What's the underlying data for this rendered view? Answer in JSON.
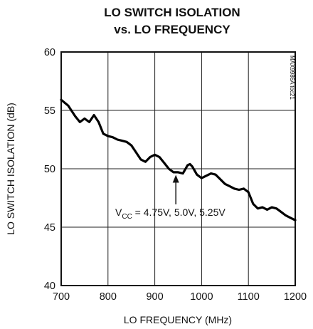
{
  "chart_data": {
    "type": "line",
    "title_lines": [
      "LO SWITCH ISOLATION",
      "vs. LO FREQUENCY"
    ],
    "xlabel": "LO FREQUENCY (MHz)",
    "ylabel": "LO SWITCH ISOLATION (dB)",
    "xlim": [
      700,
      1200
    ],
    "ylim": [
      40,
      60
    ],
    "xticks": [
      700,
      800,
      900,
      1000,
      1100,
      1200
    ],
    "yticks": [
      40,
      45,
      50,
      55,
      60
    ],
    "grid": true,
    "side_label": "MAX9986A toc21",
    "annotation": {
      "prefix": "V",
      "subscript": "CC",
      "text": " = 4.75V, 5.0V, 5.25V",
      "arrow_to": {
        "x": 945,
        "y": 49.6
      }
    },
    "series": [
      {
        "x": [
          700,
          715,
          730,
          740,
          750,
          760,
          770,
          780,
          790,
          800,
          810,
          820,
          830,
          840,
          850,
          860,
          870,
          880,
          890,
          900,
          910,
          920,
          930,
          940,
          950,
          960,
          970,
          975,
          980,
          990,
          1000,
          1010,
          1020,
          1030,
          1040,
          1050,
          1060,
          1070,
          1080,
          1090,
          1100,
          1110,
          1120,
          1130,
          1140,
          1150,
          1160,
          1170,
          1180,
          1190,
          1200
        ],
        "y": [
          55.9,
          55.4,
          54.5,
          54.0,
          54.3,
          54.0,
          54.6,
          54.0,
          53.0,
          52.8,
          52.7,
          52.5,
          52.4,
          52.3,
          52.0,
          51.4,
          50.8,
          50.6,
          51.0,
          51.2,
          51.0,
          50.5,
          50.0,
          49.7,
          49.7,
          49.6,
          50.3,
          50.4,
          50.2,
          49.5,
          49.2,
          49.4,
          49.6,
          49.5,
          49.1,
          48.7,
          48.5,
          48.3,
          48.2,
          48.3,
          48.0,
          47.0,
          46.6,
          46.7,
          46.5,
          46.7,
          46.6,
          46.3,
          46.0,
          45.8,
          45.6
        ]
      }
    ]
  }
}
